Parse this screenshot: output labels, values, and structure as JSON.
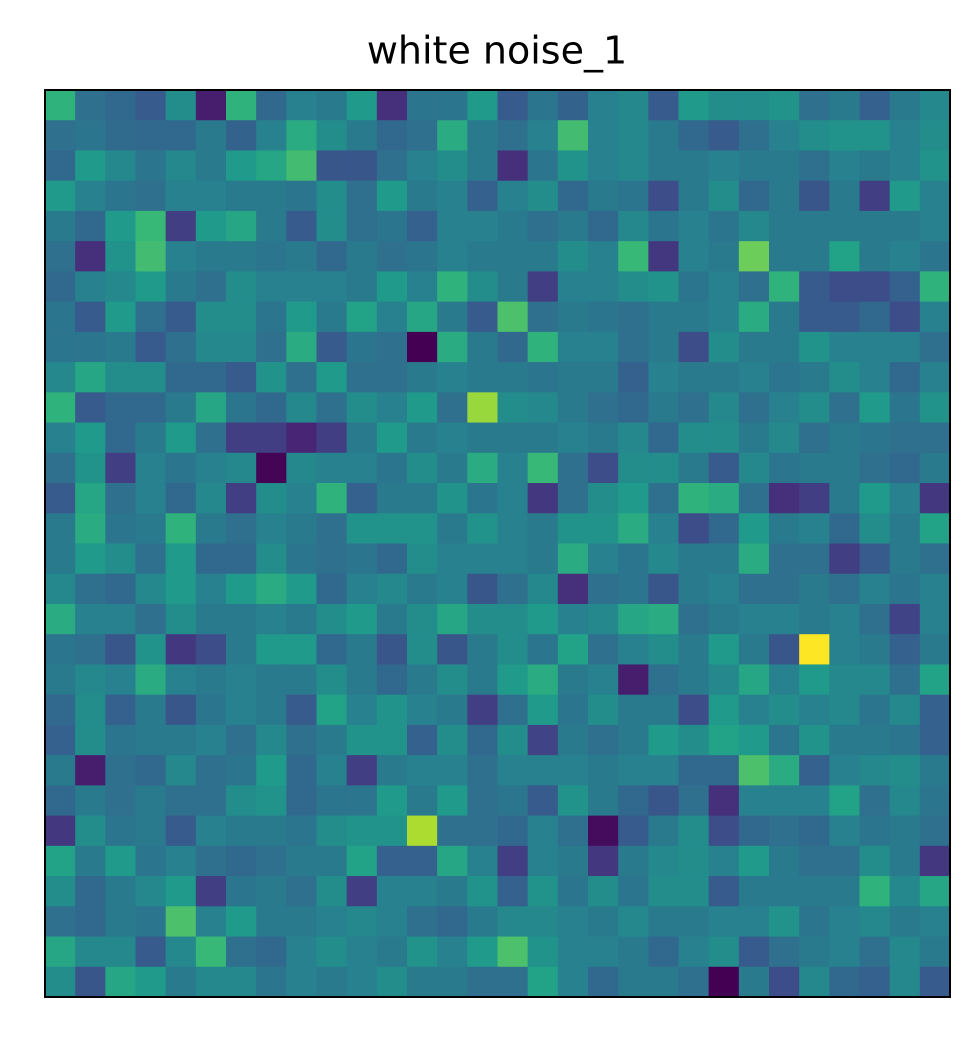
{
  "chart_data": {
    "type": "heatmap",
    "title": "white noise_1",
    "colormap": "viridis",
    "values": [
      [
        0.65,
        0.38,
        0.35,
        0.3,
        0.5,
        0.1,
        0.65,
        0.35,
        0.45,
        0.42,
        0.55,
        0.15,
        0.4,
        0.4,
        0.55,
        0.3,
        0.4,
        0.33,
        0.45,
        0.48,
        0.3,
        0.55,
        0.5,
        0.5,
        0.52,
        0.38,
        0.42,
        0.32,
        0.42,
        0.48
      ],
      [
        0.38,
        0.4,
        0.36,
        0.35,
        0.35,
        0.42,
        0.33,
        0.45,
        0.62,
        0.5,
        0.42,
        0.35,
        0.38,
        0.62,
        0.42,
        0.38,
        0.45,
        0.7,
        0.45,
        0.48,
        0.42,
        0.35,
        0.3,
        0.38,
        0.45,
        0.5,
        0.52,
        0.52,
        0.45,
        0.5
      ],
      [
        0.35,
        0.55,
        0.48,
        0.4,
        0.48,
        0.42,
        0.55,
        0.6,
        0.7,
        0.28,
        0.28,
        0.38,
        0.45,
        0.5,
        0.42,
        0.15,
        0.4,
        0.52,
        0.45,
        0.48,
        0.42,
        0.42,
        0.45,
        0.42,
        0.42,
        0.38,
        0.45,
        0.42,
        0.45,
        0.52
      ],
      [
        0.55,
        0.45,
        0.4,
        0.38,
        0.45,
        0.45,
        0.42,
        0.42,
        0.4,
        0.5,
        0.38,
        0.55,
        0.42,
        0.45,
        0.32,
        0.45,
        0.5,
        0.35,
        0.42,
        0.4,
        0.25,
        0.42,
        0.5,
        0.35,
        0.42,
        0.28,
        0.42,
        0.2,
        0.55,
        0.45
      ],
      [
        0.42,
        0.35,
        0.55,
        0.68,
        0.2,
        0.55,
        0.6,
        0.42,
        0.3,
        0.5,
        0.38,
        0.4,
        0.32,
        0.45,
        0.45,
        0.42,
        0.38,
        0.42,
        0.35,
        0.48,
        0.4,
        0.45,
        0.4,
        0.48,
        0.42,
        0.42,
        0.42,
        0.42,
        0.42,
        0.45
      ],
      [
        0.38,
        0.15,
        0.52,
        0.7,
        0.45,
        0.42,
        0.42,
        0.4,
        0.42,
        0.35,
        0.42,
        0.38,
        0.4,
        0.45,
        0.42,
        0.42,
        0.42,
        0.5,
        0.45,
        0.68,
        0.18,
        0.45,
        0.42,
        0.78,
        0.42,
        0.42,
        0.58,
        0.42,
        0.45,
        0.4
      ],
      [
        0.35,
        0.45,
        0.48,
        0.55,
        0.42,
        0.38,
        0.5,
        0.45,
        0.45,
        0.45,
        0.42,
        0.55,
        0.45,
        0.65,
        0.5,
        0.42,
        0.2,
        0.45,
        0.45,
        0.5,
        0.52,
        0.4,
        0.45,
        0.38,
        0.65,
        0.3,
        0.25,
        0.25,
        0.32,
        0.65
      ],
      [
        0.4,
        0.3,
        0.55,
        0.38,
        0.3,
        0.5,
        0.5,
        0.4,
        0.55,
        0.42,
        0.58,
        0.45,
        0.6,
        0.42,
        0.3,
        0.72,
        0.38,
        0.42,
        0.4,
        0.38,
        0.42,
        0.42,
        0.45,
        0.62,
        0.42,
        0.3,
        0.3,
        0.35,
        0.25,
        0.45
      ],
      [
        0.4,
        0.4,
        0.42,
        0.3,
        0.38,
        0.48,
        0.48,
        0.38,
        0.62,
        0.3,
        0.4,
        0.38,
        0.02,
        0.62,
        0.42,
        0.35,
        0.65,
        0.45,
        0.45,
        0.38,
        0.42,
        0.25,
        0.5,
        0.42,
        0.42,
        0.52,
        0.45,
        0.45,
        0.45,
        0.38
      ],
      [
        0.48,
        0.6,
        0.5,
        0.5,
        0.35,
        0.35,
        0.3,
        0.52,
        0.38,
        0.55,
        0.38,
        0.38,
        0.42,
        0.45,
        0.42,
        0.42,
        0.4,
        0.42,
        0.42,
        0.32,
        0.45,
        0.42,
        0.42,
        0.45,
        0.4,
        0.42,
        0.5,
        0.45,
        0.35,
        0.45
      ],
      [
        0.65,
        0.3,
        0.35,
        0.35,
        0.42,
        0.6,
        0.4,
        0.35,
        0.48,
        0.38,
        0.5,
        0.45,
        0.55,
        0.38,
        0.85,
        0.5,
        0.48,
        0.42,
        0.38,
        0.35,
        0.42,
        0.38,
        0.48,
        0.38,
        0.45,
        0.5,
        0.38,
        0.55,
        0.4,
        0.52
      ],
      [
        0.45,
        0.55,
        0.35,
        0.42,
        0.55,
        0.38,
        0.2,
        0.2,
        0.12,
        0.2,
        0.42,
        0.55,
        0.42,
        0.45,
        0.42,
        0.42,
        0.42,
        0.45,
        0.42,
        0.48,
        0.35,
        0.5,
        0.5,
        0.42,
        0.48,
        0.38,
        0.42,
        0.4,
        0.38,
        0.38
      ],
      [
        0.38,
        0.52,
        0.2,
        0.45,
        0.4,
        0.45,
        0.48,
        0.03,
        0.48,
        0.45,
        0.45,
        0.4,
        0.5,
        0.42,
        0.62,
        0.45,
        0.68,
        0.38,
        0.25,
        0.5,
        0.5,
        0.42,
        0.3,
        0.48,
        0.4,
        0.42,
        0.42,
        0.38,
        0.35,
        0.42
      ],
      [
        0.3,
        0.6,
        0.38,
        0.45,
        0.35,
        0.48,
        0.2,
        0.5,
        0.45,
        0.65,
        0.32,
        0.42,
        0.42,
        0.52,
        0.4,
        0.45,
        0.18,
        0.38,
        0.5,
        0.55,
        0.38,
        0.65,
        0.62,
        0.38,
        0.15,
        0.2,
        0.42,
        0.55,
        0.45,
        0.18
      ],
      [
        0.42,
        0.62,
        0.4,
        0.42,
        0.65,
        0.42,
        0.38,
        0.45,
        0.42,
        0.38,
        0.52,
        0.52,
        0.52,
        0.42,
        0.52,
        0.45,
        0.42,
        0.52,
        0.52,
        0.62,
        0.45,
        0.25,
        0.35,
        0.55,
        0.42,
        0.45,
        0.35,
        0.5,
        0.42,
        0.58
      ],
      [
        0.42,
        0.55,
        0.5,
        0.38,
        0.55,
        0.35,
        0.35,
        0.5,
        0.4,
        0.38,
        0.4,
        0.35,
        0.5,
        0.45,
        0.45,
        0.45,
        0.42,
        0.62,
        0.45,
        0.4,
        0.48,
        0.42,
        0.42,
        0.62,
        0.38,
        0.38,
        0.2,
        0.3,
        0.42,
        0.38
      ],
      [
        0.48,
        0.38,
        0.35,
        0.48,
        0.55,
        0.45,
        0.55,
        0.62,
        0.55,
        0.35,
        0.45,
        0.48,
        0.42,
        0.45,
        0.28,
        0.38,
        0.48,
        0.15,
        0.38,
        0.4,
        0.28,
        0.42,
        0.45,
        0.38,
        0.38,
        0.42,
        0.38,
        0.45,
        0.4,
        0.45
      ],
      [
        0.62,
        0.45,
        0.45,
        0.38,
        0.5,
        0.42,
        0.42,
        0.45,
        0.42,
        0.5,
        0.55,
        0.42,
        0.5,
        0.6,
        0.5,
        0.5,
        0.55,
        0.45,
        0.48,
        0.6,
        0.62,
        0.38,
        0.42,
        0.45,
        0.45,
        0.42,
        0.45,
        0.38,
        0.22,
        0.45
      ],
      [
        0.4,
        0.38,
        0.28,
        0.52,
        0.18,
        0.25,
        0.42,
        0.55,
        0.55,
        0.35,
        0.42,
        0.28,
        0.5,
        0.28,
        0.42,
        0.5,
        0.4,
        0.58,
        0.38,
        0.45,
        0.5,
        0.42,
        0.55,
        0.42,
        0.28,
        1.0,
        0.45,
        0.42,
        0.32,
        0.42
      ],
      [
        0.42,
        0.48,
        0.45,
        0.62,
        0.45,
        0.42,
        0.45,
        0.42,
        0.42,
        0.5,
        0.42,
        0.35,
        0.42,
        0.5,
        0.42,
        0.55,
        0.62,
        0.42,
        0.45,
        0.1,
        0.38,
        0.42,
        0.48,
        0.6,
        0.45,
        0.55,
        0.48,
        0.48,
        0.38,
        0.58
      ],
      [
        0.35,
        0.5,
        0.32,
        0.42,
        0.28,
        0.4,
        0.45,
        0.42,
        0.3,
        0.58,
        0.45,
        0.52,
        0.45,
        0.42,
        0.2,
        0.38,
        0.55,
        0.4,
        0.5,
        0.42,
        0.42,
        0.25,
        0.55,
        0.45,
        0.5,
        0.45,
        0.48,
        0.4,
        0.48,
        0.32
      ],
      [
        0.32,
        0.5,
        0.4,
        0.42,
        0.42,
        0.45,
        0.38,
        0.48,
        0.38,
        0.42,
        0.52,
        0.52,
        0.32,
        0.5,
        0.35,
        0.5,
        0.22,
        0.42,
        0.38,
        0.42,
        0.55,
        0.5,
        0.58,
        0.55,
        0.4,
        0.52,
        0.42,
        0.42,
        0.4,
        0.32
      ],
      [
        0.42,
        0.1,
        0.38,
        0.35,
        0.48,
        0.38,
        0.4,
        0.55,
        0.35,
        0.45,
        0.2,
        0.42,
        0.45,
        0.45,
        0.38,
        0.45,
        0.45,
        0.45,
        0.42,
        0.45,
        0.45,
        0.35,
        0.35,
        0.72,
        0.62,
        0.32,
        0.45,
        0.48,
        0.5,
        0.42
      ],
      [
        0.35,
        0.42,
        0.38,
        0.42,
        0.38,
        0.38,
        0.5,
        0.52,
        0.35,
        0.4,
        0.4,
        0.55,
        0.42,
        0.55,
        0.38,
        0.4,
        0.3,
        0.52,
        0.42,
        0.35,
        0.28,
        0.38,
        0.15,
        0.45,
        0.45,
        0.45,
        0.58,
        0.38,
        0.48,
        0.4
      ],
      [
        0.18,
        0.5,
        0.4,
        0.42,
        0.3,
        0.45,
        0.42,
        0.42,
        0.4,
        0.5,
        0.52,
        0.52,
        0.88,
        0.38,
        0.38,
        0.35,
        0.45,
        0.38,
        0.05,
        0.3,
        0.42,
        0.5,
        0.25,
        0.35,
        0.38,
        0.35,
        0.45,
        0.4,
        0.42,
        0.38
      ],
      [
        0.58,
        0.42,
        0.55,
        0.4,
        0.45,
        0.38,
        0.35,
        0.38,
        0.42,
        0.42,
        0.58,
        0.32,
        0.32,
        0.6,
        0.45,
        0.2,
        0.45,
        0.42,
        0.18,
        0.42,
        0.48,
        0.5,
        0.45,
        0.55,
        0.42,
        0.38,
        0.38,
        0.5,
        0.42,
        0.18
      ],
      [
        0.5,
        0.35,
        0.42,
        0.48,
        0.55,
        0.2,
        0.4,
        0.42,
        0.38,
        0.5,
        0.2,
        0.45,
        0.45,
        0.42,
        0.52,
        0.32,
        0.52,
        0.4,
        0.5,
        0.4,
        0.5,
        0.5,
        0.3,
        0.42,
        0.42,
        0.42,
        0.42,
        0.65,
        0.48,
        0.6
      ],
      [
        0.38,
        0.35,
        0.42,
        0.4,
        0.72,
        0.45,
        0.55,
        0.42,
        0.42,
        0.45,
        0.48,
        0.45,
        0.38,
        0.35,
        0.42,
        0.48,
        0.48,
        0.45,
        0.42,
        0.48,
        0.42,
        0.42,
        0.45,
        0.45,
        0.52,
        0.4,
        0.45,
        0.48,
        0.42,
        0.45
      ],
      [
        0.6,
        0.48,
        0.48,
        0.3,
        0.48,
        0.68,
        0.38,
        0.35,
        0.45,
        0.5,
        0.45,
        0.42,
        0.52,
        0.45,
        0.55,
        0.72,
        0.52,
        0.45,
        0.45,
        0.42,
        0.35,
        0.45,
        0.5,
        0.3,
        0.38,
        0.42,
        0.45,
        0.38,
        0.48,
        0.42
      ],
      [
        0.5,
        0.28,
        0.6,
        0.55,
        0.42,
        0.48,
        0.48,
        0.4,
        0.45,
        0.42,
        0.45,
        0.5,
        0.42,
        0.42,
        0.38,
        0.38,
        0.58,
        0.45,
        0.35,
        0.42,
        0.42,
        0.38,
        0.02,
        0.42,
        0.25,
        0.48,
        0.35,
        0.32,
        0.48,
        0.3
      ]
    ]
  }
}
